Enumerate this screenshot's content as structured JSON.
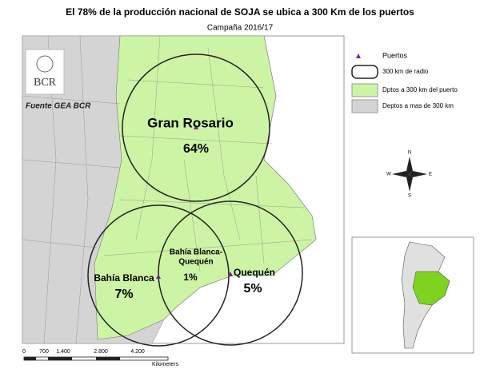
{
  "header": {
    "title": "El 78% de la producción nacional de SOJA se ubica a 300 Km de los puertos",
    "subtitle": "Campaña 2016/17"
  },
  "logo": {
    "text": "BCR",
    "source": "Fuente GEA BCR"
  },
  "legend": [
    {
      "label": "Puertos"
    },
    {
      "label": "300 km de radio"
    },
    {
      "label": "Dptos a 300 km del puerto"
    },
    {
      "label": "Deptos a mas de 300 km"
    }
  ],
  "ports": [
    {
      "name": "Gran Rosario",
      "share": "64%"
    },
    {
      "name": "Bahía Blanca",
      "share": "7%"
    },
    {
      "name": "Quequén",
      "share": "5%"
    }
  ],
  "overlap": {
    "name_lines": [
      "Bahía Blanca-",
      "Quequén"
    ],
    "share": "1%"
  },
  "compass": {
    "n": "N",
    "s": "S",
    "e": "E",
    "w": "W"
  },
  "scale": {
    "ticks": [
      "0",
      "700",
      "1.400",
      "2.800",
      "4.200"
    ],
    "unit": "Kilometers"
  }
}
